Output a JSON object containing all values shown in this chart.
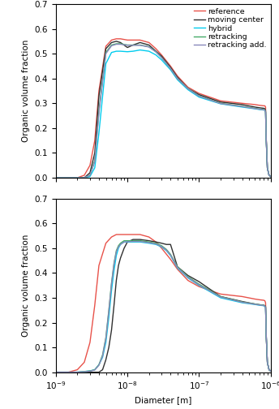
{
  "xlabel": "Diameter [m]",
  "ylabel": "Organic volume fraction",
  "xlim": [
    1e-09,
    1e-06
  ],
  "ylim": [
    0,
    0.7
  ],
  "yticks": [
    0,
    0.1,
    0.2,
    0.3,
    0.4,
    0.5,
    0.6,
    0.7
  ],
  "legend_labels": [
    "reference",
    "moving center",
    "hybrid",
    "retracking",
    "retracking add."
  ],
  "colors": {
    "reference": "#e8524a",
    "moving_center": "#303030",
    "hybrid": "#00ccee",
    "retracking": "#44aa66",
    "retracking_add": "#8888bb"
  },
  "linewidth": 1.0
}
